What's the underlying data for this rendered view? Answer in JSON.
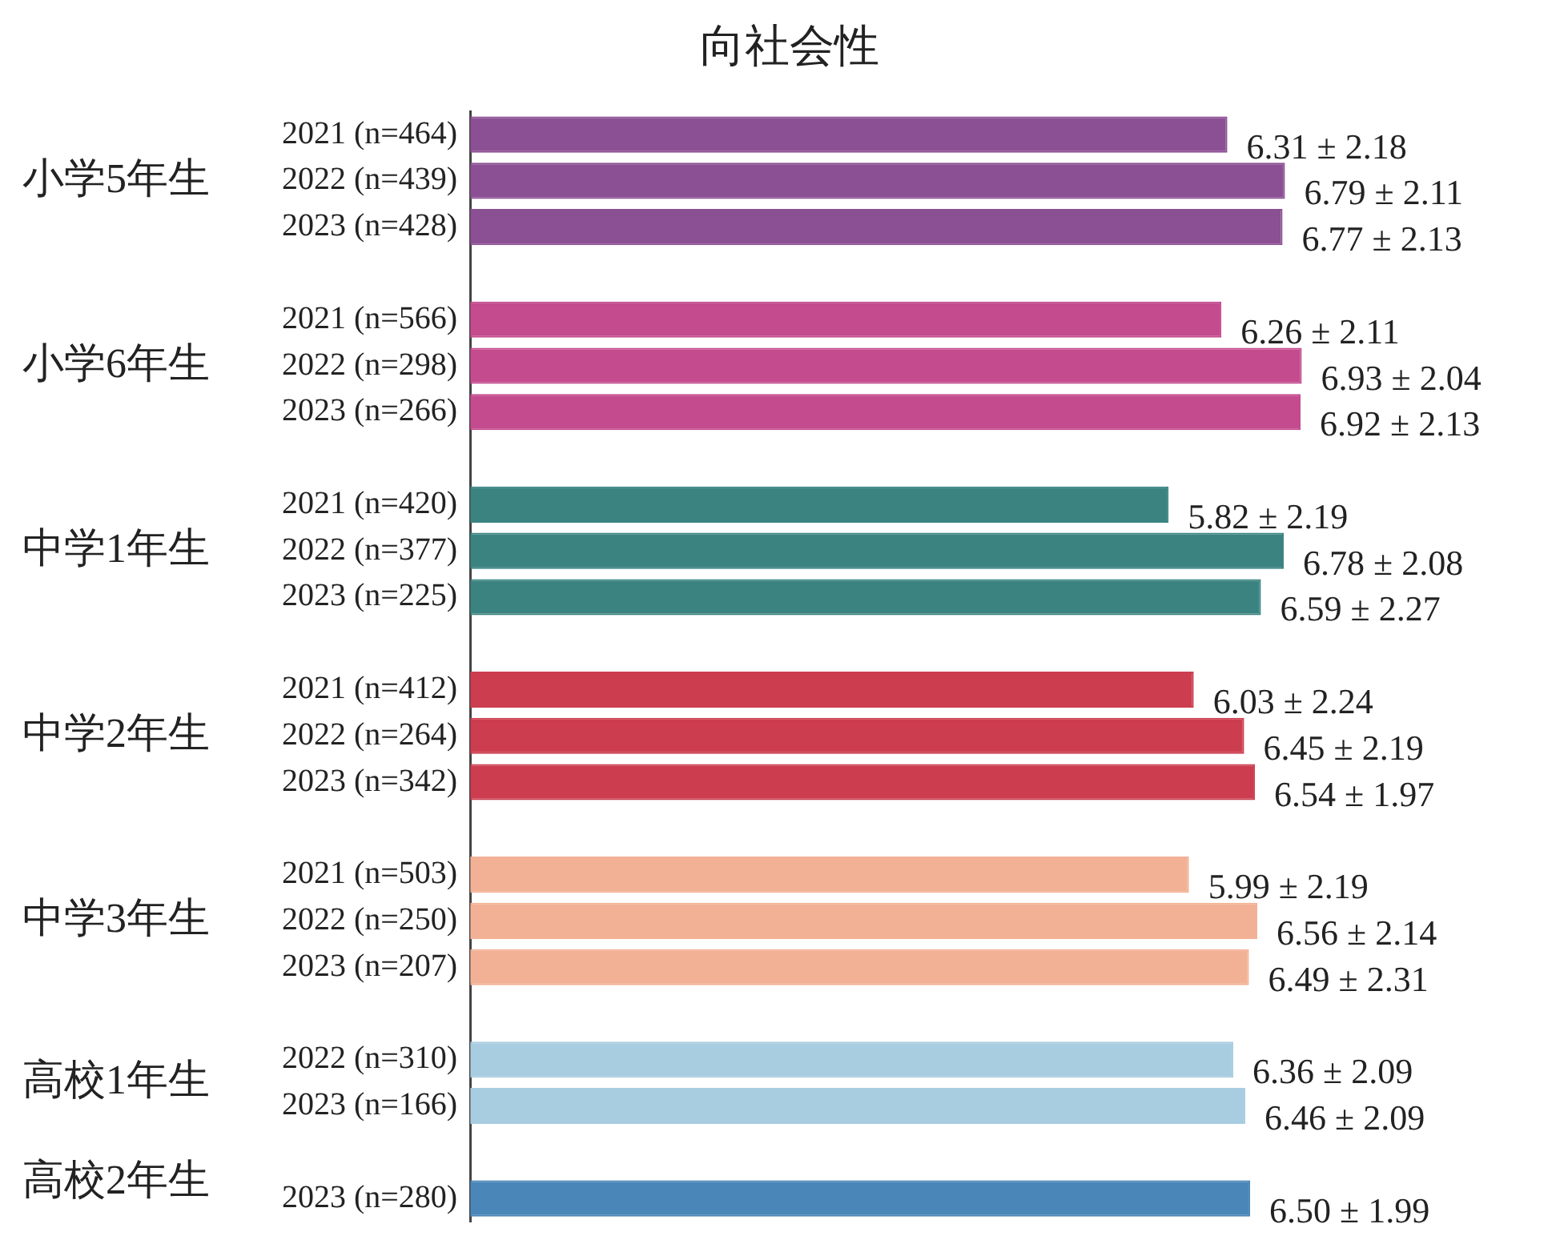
{
  "chart_data": {
    "type": "bar",
    "orientation": "horizontal",
    "title": "向社会性",
    "categories": [
      "2021 (n=464)",
      "2022 (n=439)",
      "2023 (n=428)",
      null,
      "2021 (n=566)",
      "2022 (n=298)",
      "2023 (n=266)",
      null,
      "2021 (n=420)",
      "2022 (n=377)",
      "2023 (n=225)",
      null,
      "2021 (n=412)",
      "2022 (n=264)",
      "2023 (n=342)",
      null,
      "2021 (n=503)",
      "2022 (n=250)",
      "2023 (n=207)",
      null,
      "2022 (n=310)",
      "2023 (n=166)",
      null,
      "2023 (n=280)"
    ],
    "values": [
      6.31,
      6.79,
      6.77,
      null,
      6.26,
      6.93,
      6.92,
      null,
      5.82,
      6.78,
      6.59,
      null,
      6.03,
      6.45,
      6.54,
      null,
      5.99,
      6.56,
      6.49,
      null,
      6.36,
      6.46,
      null,
      6.5
    ],
    "value_labels": [
      "6.31 ± 2.18",
      "6.79 ± 2.11",
      "6.77 ± 2.13",
      null,
      "6.26 ± 2.11",
      "6.93 ± 2.04",
      "6.92 ± 2.13",
      null,
      "5.82 ± 2.19",
      "6.78 ± 2.08",
      "6.59 ± 2.27",
      null,
      "6.03 ± 2.24",
      "6.45 ± 2.19",
      "6.54 ± 1.97",
      null,
      "5.99 ± 2.19",
      "6.56 ± 2.14",
      "6.49 ± 2.31",
      null,
      "6.36 ± 2.09",
      "6.46 ± 2.09",
      null,
      "6.50 ± 1.99"
    ],
    "colors": [
      "#8b4f93",
      "#8b4f93",
      "#8b4f93",
      null,
      "#c44b8e",
      "#c44b8e",
      "#c44b8e",
      null,
      "#3a8380",
      "#3a8380",
      "#3a8380",
      null,
      "#cc3d4f",
      "#cc3d4f",
      "#cc3d4f",
      null,
      "#f2b195",
      "#f2b195",
      "#f2b195",
      null,
      "#a8cde0",
      "#a8cde0",
      null,
      "#4a86b8"
    ],
    "annotations": [
      "小学5年生",
      "小学6年生",
      "中学1年生",
      "中学2年生",
      "中学3年生",
      "高校1年生",
      "高校2年生"
    ]
  }
}
